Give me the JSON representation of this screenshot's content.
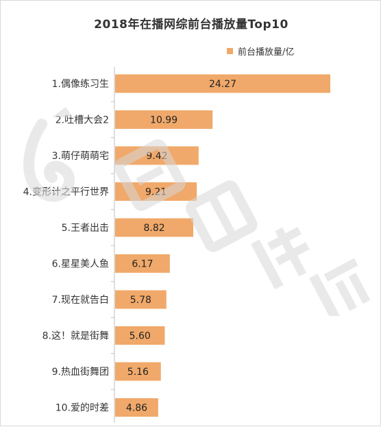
{
  "chart_data": {
    "type": "bar",
    "orientation": "horizontal",
    "title": "2018年在播网综前台播放量Top10",
    "categories": [
      "1.偶像练习生",
      "2.吐槽大会2",
      "3.萌仔萌萌宅",
      "4.变形计之平行世界",
      "5.王者出击",
      "6.星星美人鱼",
      "7.现在就告白",
      "8.这！就是街舞",
      "9.热血街舞团",
      "10.爱的时差"
    ],
    "series": [
      {
        "name": "前台播放量/亿",
        "values": [
          24.27,
          10.99,
          9.42,
          9.21,
          8.82,
          6.17,
          5.78,
          5.6,
          5.16,
          4.86
        ]
      }
    ],
    "value_labels": [
      "24.27",
      "10.99",
      "9.42",
      "9.21",
      "8.82",
      "6.17",
      "5.78",
      "5.60",
      "5.16",
      "4.86"
    ],
    "xlim": [
      0,
      24.27
    ],
    "legend_position": "top-right",
    "grid": false,
    "bar_color": "#f0a96a",
    "axis_color": "#bfbfbf"
  },
  "watermark": {
    "text": "骨朵传媒",
    "color": "#d8d8d8"
  }
}
